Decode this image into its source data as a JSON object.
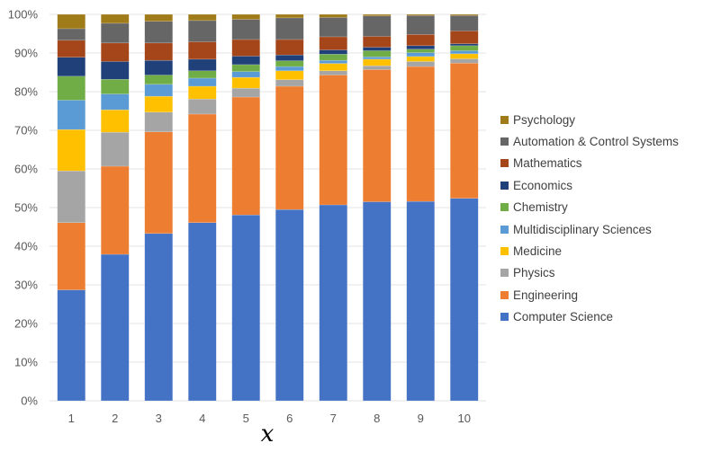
{
  "chart_data": {
    "type": "bar",
    "stacked": true,
    "normalized": true,
    "title": "",
    "xlabel": "x",
    "ylabel": "",
    "ylim": [
      0,
      100
    ],
    "yticks": [
      "0%",
      "10%",
      "20%",
      "30%",
      "40%",
      "50%",
      "60%",
      "70%",
      "80%",
      "90%",
      "100%"
    ],
    "grid": true,
    "legend_position": "right",
    "categories": [
      "1",
      "2",
      "3",
      "4",
      "5",
      "6",
      "7",
      "8",
      "9",
      "10"
    ],
    "series": [
      {
        "name": "Computer Science",
        "color": "#4472C4",
        "values": [
          28.7,
          37.9,
          43.3,
          46.1,
          48.1,
          49.5,
          50.7,
          51.5,
          51.6,
          52.4
        ]
      },
      {
        "name": "Engineering",
        "color": "#ED7D31",
        "values": [
          17.4,
          22.8,
          26.3,
          28.1,
          30.5,
          31.9,
          33.6,
          34.2,
          34.9,
          35.0
        ]
      },
      {
        "name": "Physics",
        "color": "#A5A5A5",
        "values": [
          13.4,
          8.8,
          5.1,
          3.9,
          2.3,
          1.7,
          1.1,
          1.0,
          1.3,
          1.1
        ]
      },
      {
        "name": "Medicine",
        "color": "#FFC000",
        "values": [
          10.7,
          5.8,
          4.1,
          3.3,
          2.8,
          2.3,
          1.9,
          1.7,
          1.3,
          1.3
        ]
      },
      {
        "name": "Multidisciplinary Sciences",
        "color": "#5B9BD5",
        "values": [
          7.6,
          4.1,
          3.1,
          2.1,
          1.5,
          1.1,
          0.8,
          0.6,
          1.0,
          0.8
        ]
      },
      {
        "name": "Chemistry",
        "color": "#70AD47",
        "values": [
          6.2,
          3.8,
          2.4,
          1.9,
          1.8,
          1.5,
          1.6,
          1.6,
          0.9,
          1.3
        ]
      },
      {
        "name": "Economics",
        "color": "#1F4078",
        "values": [
          4.9,
          4.6,
          3.8,
          3.0,
          2.2,
          1.5,
          1.1,
          0.9,
          0.9,
          0.5
        ]
      },
      {
        "name": "Mathematics",
        "color": "#A5461A",
        "values": [
          4.4,
          4.8,
          4.5,
          4.5,
          4.3,
          4.0,
          3.4,
          2.8,
          2.9,
          3.3
        ]
      },
      {
        "name": "Automation & Control Systems",
        "color": "#666666",
        "values": [
          3.0,
          5.1,
          5.6,
          5.5,
          5.2,
          5.6,
          5.0,
          5.3,
          4.9,
          4.0
        ]
      },
      {
        "name": "Psychology",
        "color": "#A07B1A",
        "values": [
          3.7,
          2.3,
          1.8,
          1.6,
          1.3,
          0.9,
          0.8,
          0.4,
          0.3,
          0.3
        ]
      }
    ]
  }
}
